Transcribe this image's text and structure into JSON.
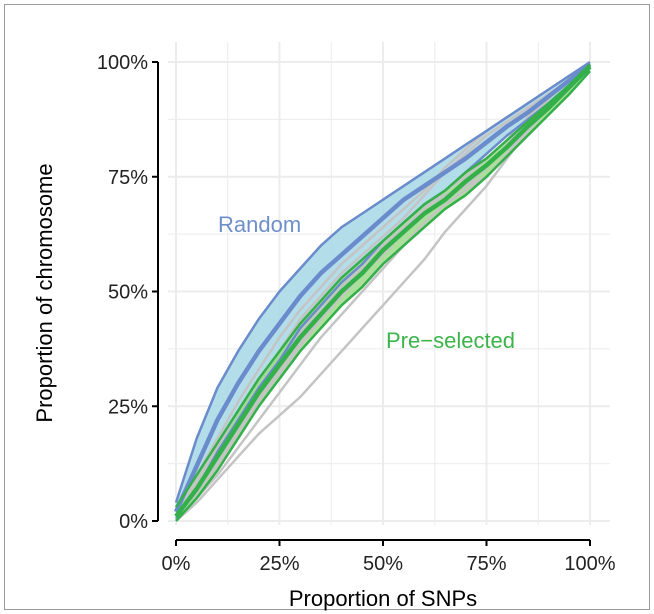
{
  "chart_data": {
    "type": "line",
    "title": "",
    "xlabel": "Proportion of SNPs",
    "ylabel": "Proportion of chromosome",
    "xlim": [
      0,
      100
    ],
    "ylim": [
      0,
      100
    ],
    "x_ticks": [
      "0%",
      "25%",
      "50%",
      "75%",
      "100%"
    ],
    "y_ticks": [
      "0%",
      "25%",
      "50%",
      "75%",
      "100%"
    ],
    "grid": true,
    "legend": "none",
    "annotations": [
      {
        "text": "Random",
        "color": "#6f8fcb"
      },
      {
        "text": "Pre−selected",
        "color": "#3cb44b"
      }
    ],
    "colors": {
      "random_line": "#6a8ccc",
      "random_band": "#a7d7e6",
      "preselected_line": "#33b04a",
      "preselected_band": "#9ed98a",
      "background_lines": "#c4c4c4",
      "grid": "#ececec"
    },
    "series": [
      {
        "name": "Random",
        "role": "mean",
        "x": [
          0,
          5,
          10,
          15,
          20,
          25,
          30,
          35,
          40,
          45,
          50,
          55,
          60,
          65,
          70,
          75,
          80,
          85,
          90,
          95,
          100
        ],
        "upper": [
          4,
          18,
          29,
          37,
          44,
          50,
          55,
          60,
          64,
          67,
          70,
          73,
          76,
          79,
          82,
          85,
          88,
          91,
          94,
          97,
          100
        ],
        "values": [
          2,
          12,
          22,
          30,
          37,
          43,
          49,
          54,
          58,
          62,
          66,
          70,
          73,
          76,
          79,
          82.5,
          86,
          89,
          92.5,
          96,
          99.5
        ],
        "lower": [
          0.5,
          7,
          15,
          22,
          29,
          35,
          42,
          47,
          52,
          56,
          61,
          65,
          69,
          72,
          76,
          80,
          84,
          87.5,
          91,
          95,
          99
        ]
      },
      {
        "name": "Pre−selected",
        "role": "mean",
        "x": [
          0,
          5,
          10,
          15,
          20,
          25,
          30,
          35,
          40,
          45,
          50,
          55,
          60,
          65,
          70,
          75,
          80,
          85,
          90,
          95,
          100
        ],
        "upper": [
          3,
          10,
          17,
          24,
          31,
          37,
          43,
          48,
          53,
          57,
          61,
          65,
          69,
          72,
          76,
          79,
          83,
          87,
          91,
          95,
          99.5
        ],
        "values": [
          1,
          7,
          14,
          21,
          28,
          34,
          40,
          45,
          50,
          54,
          59,
          63,
          67,
          70,
          74,
          77.5,
          81.5,
          86,
          90,
          94.5,
          99
        ],
        "lower": [
          0,
          5,
          11,
          18,
          25,
          31,
          37,
          42,
          47,
          51,
          56,
          60,
          64,
          68,
          71,
          75,
          79.5,
          84,
          88.5,
          93,
          98
        ]
      }
    ],
    "background_series": [
      {
        "x": [
          0,
          5,
          10,
          15,
          20,
          25,
          30,
          35,
          40,
          45,
          50,
          55,
          60,
          65,
          70,
          75,
          80,
          85,
          90,
          95,
          100
        ],
        "values": [
          0,
          4,
          9,
          14,
          19,
          23,
          27,
          32,
          37,
          42,
          47,
          52,
          57,
          63,
          68,
          73,
          79,
          85,
          91,
          95,
          98
        ]
      },
      {
        "x": [
          0,
          5,
          10,
          15,
          20,
          25,
          30,
          35,
          40,
          45,
          50,
          55,
          60,
          65,
          70,
          75,
          80,
          85,
          90,
          95,
          100
        ],
        "values": [
          1,
          6,
          12,
          19,
          26,
          32,
          38,
          44,
          49,
          54,
          58,
          63,
          68,
          71,
          73,
          75,
          80,
          86,
          92,
          96,
          98
        ]
      },
      {
        "x": [
          0,
          5,
          10,
          15,
          20,
          25,
          30,
          35,
          40,
          45,
          50,
          55,
          60,
          65,
          70,
          75,
          80,
          85,
          90,
          95,
          100
        ],
        "values": [
          2,
          9,
          16,
          24,
          31,
          37,
          44,
          49,
          54,
          58,
          62,
          66,
          71,
          76,
          80,
          84,
          87,
          90,
          93,
          96,
          99
        ]
      },
      {
        "x": [
          0,
          5,
          10,
          15,
          20,
          25,
          30,
          35,
          40,
          45,
          50,
          55,
          60,
          65,
          70,
          75,
          80,
          85,
          90,
          95,
          100
        ],
        "values": [
          1,
          8,
          15,
          22,
          29,
          35,
          41,
          46,
          51,
          56,
          60,
          64,
          68,
          72,
          75,
          79,
          83,
          88,
          92,
          96,
          99
        ]
      },
      {
        "x": [
          0,
          5,
          10,
          15,
          20,
          25,
          30,
          35,
          40,
          45,
          50,
          55,
          60,
          65,
          70,
          75,
          80,
          85,
          90,
          95,
          100
        ],
        "values": [
          1,
          7,
          13,
          20,
          27,
          33,
          39,
          45,
          50,
          55,
          59,
          63,
          67,
          70,
          73,
          77,
          82,
          87,
          91,
          95,
          98
        ]
      },
      {
        "x": [
          0,
          5,
          10,
          15,
          20,
          25,
          30,
          35,
          40,
          45,
          50,
          55,
          60,
          65,
          70,
          75,
          80,
          85,
          90,
          95,
          100
        ],
        "values": [
          2,
          10,
          18,
          26,
          33,
          40,
          46,
          51,
          56,
          60,
          64,
          68,
          72,
          77,
          81,
          85,
          88,
          91,
          94,
          97,
          99
        ]
      },
      {
        "x": [
          0,
          5,
          10,
          15,
          20,
          25,
          30,
          35,
          40,
          45,
          50,
          55,
          60,
          65,
          70,
          75,
          80,
          85,
          90,
          95,
          100
        ],
        "values": [
          0,
          5,
          10,
          16,
          22,
          28,
          34,
          40,
          45,
          50,
          55,
          60,
          65,
          69,
          72,
          75,
          80,
          85,
          90,
          95,
          98
        ]
      }
    ]
  }
}
